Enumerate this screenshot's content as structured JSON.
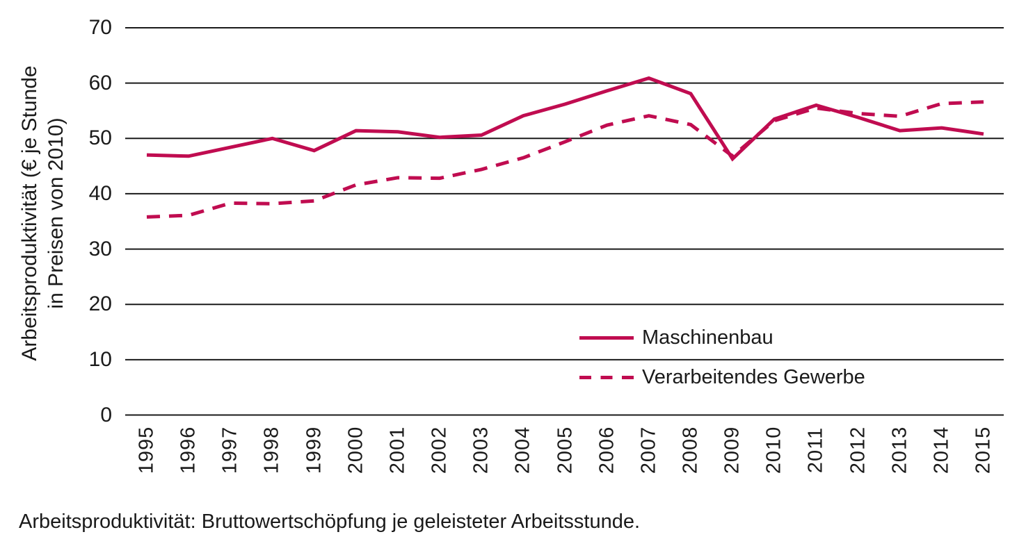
{
  "chart_data": {
    "type": "line",
    "title": "",
    "ylabel": "Arbeitsproduktivität (€ je Stunde in Preisen von 2010)",
    "ylabel_line1": "Arbeitsproduktivität (€ je Stunde",
    "ylabel_line2": "in Preisen von 2010)",
    "xlabel": "",
    "x": [
      1995,
      1996,
      1997,
      1998,
      1999,
      2000,
      2001,
      2002,
      2003,
      2004,
      2005,
      2006,
      2007,
      2008,
      2009,
      2010,
      2011,
      2012,
      2013,
      2014,
      2015
    ],
    "series": [
      {
        "name": "Maschinenbau",
        "style": "solid",
        "values": [
          47.0,
          46.8,
          48.4,
          50.0,
          47.8,
          51.4,
          51.2,
          50.2,
          50.6,
          54.1,
          56.2,
          58.6,
          60.9,
          58.1,
          46.3,
          53.5,
          56.0,
          53.8,
          51.4,
          51.9,
          50.8
        ]
      },
      {
        "name": "Verarbeitendes Gewerbe",
        "style": "dashed",
        "values": [
          35.8,
          36.1,
          38.3,
          38.2,
          38.7,
          41.6,
          42.9,
          42.8,
          44.4,
          46.5,
          49.4,
          52.4,
          54.1,
          52.5,
          46.8,
          53.2,
          55.5,
          54.5,
          54.0,
          56.3,
          56.6
        ]
      }
    ],
    "ylim": [
      0,
      70
    ],
    "yticks": [
      0,
      10,
      20,
      30,
      40,
      50,
      60,
      70
    ],
    "grid": "horizontal",
    "legend_position": "inside-lower-right",
    "line_color": "#C00C50",
    "grid_color": "#1A1A1A",
    "text_color": "#1A1A1A"
  },
  "caption": "Arbeitsproduktivität: Bruttowertschöpfung je geleisteter Arbeitsstunde."
}
